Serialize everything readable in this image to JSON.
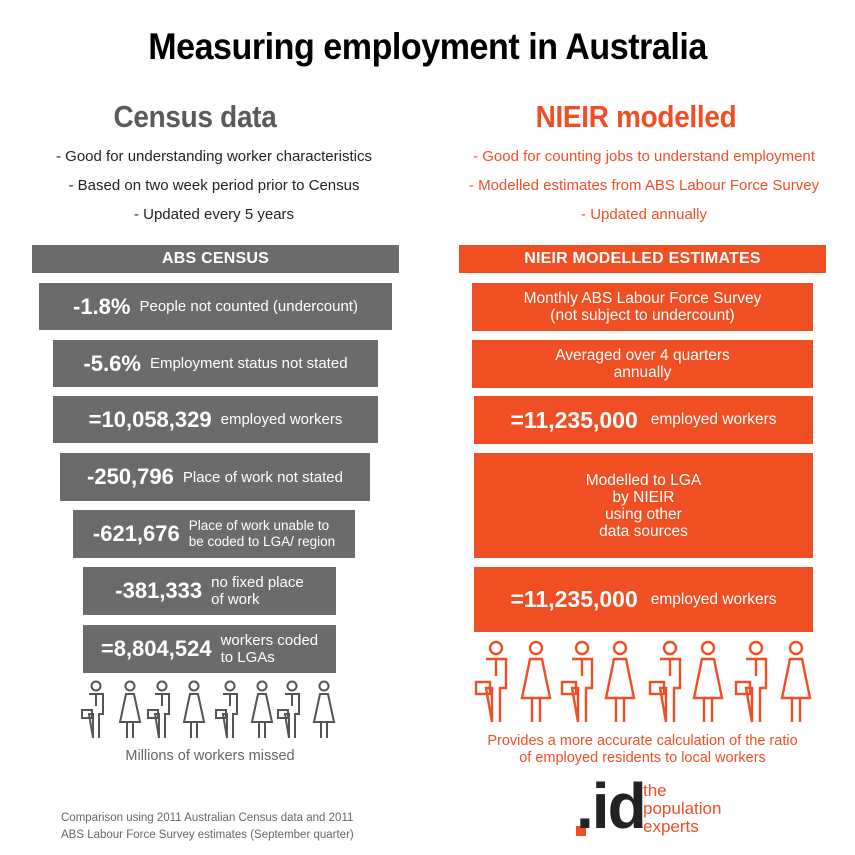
{
  "title": "Measuring employment in Australia",
  "census": {
    "heading": "Census data",
    "bullets": [
      "- Good for understanding worker characteristics",
      "- Based on two week period prior to Census",
      "- Updated every 5 years"
    ],
    "bar_label": "ABS CENSUS",
    "steps": [
      {
        "value": "-1.8%",
        "label": "People not counted (undercount)"
      },
      {
        "value": "-5.6%",
        "label": "Employment status not stated"
      },
      {
        "value": "=10,058,329",
        "label": "employed workers"
      },
      {
        "value": "-250,796",
        "label": "Place of work not stated"
      },
      {
        "value": "-621,676",
        "label": "Place of work unable to\nbe coded to LGA/ region"
      },
      {
        "value": "-381,333",
        "label": "no fixed place\nof work"
      },
      {
        "value": "=8,804,524",
        "label": "workers coded\nto LGAs"
      }
    ],
    "caption": "Millions of workers missed"
  },
  "nieir": {
    "heading": "NIEIR modelled",
    "bullets": [
      "- Good for counting jobs to understand employment",
      "- Modelled estimates from ABS Labour Force Survey",
      "- Updated annually"
    ],
    "bar_label": "NIEIR MODELLED ESTIMATES",
    "box1": "Monthly ABS Labour Force Survey\n(not subject to undercount)",
    "box2": "Averaged over 4 quarters\nannually",
    "box3": {
      "value": "=11,235,000",
      "label": "employed workers"
    },
    "box4": "Modelled to LGA\nby NIEIR\nusing other\ndata sources",
    "box5": {
      "value": "=11,235,000",
      "label": "employed workers"
    },
    "caption": "Provides a more accurate calculation of the ratio\nof employed residents to local workers"
  },
  "footnote": "Comparison using 2011 Australian Census data and 2011\nABS Labour Force Survey estimates (September quarter)",
  "logo": {
    "mark": ".id",
    "text": "the\npopulation\nexperts"
  },
  "colors": {
    "grey": "#6b6b6b",
    "orange": "#f04e23"
  }
}
